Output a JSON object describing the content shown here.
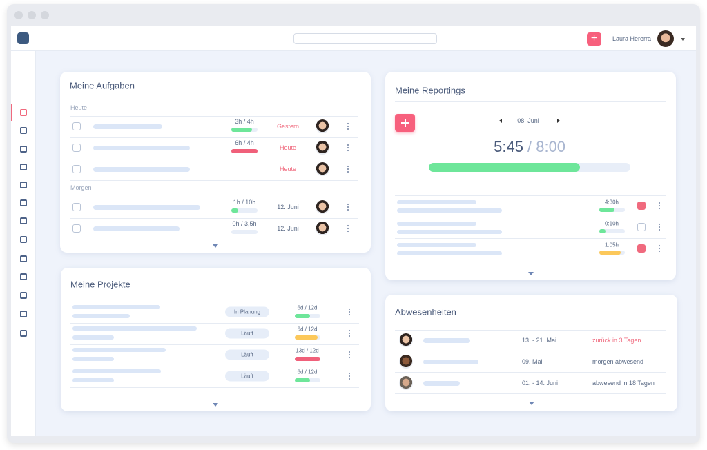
{
  "header": {
    "user": "Laura Hererra"
  },
  "tasks": {
    "title": "Meine Aufgaben",
    "groups": [
      {
        "label": "Heute",
        "rows": [
          {
            "time": "3h / 4h",
            "due": "Gestern"
          },
          {
            "time": "6h / 4h",
            "due": "Heute"
          },
          {
            "due": "Heute"
          }
        ]
      },
      {
        "label": "Morgen",
        "rows": [
          {
            "time": "1h / 10h",
            "due": "12. Juni"
          },
          {
            "time": "0h / 3,5h",
            "due": "12. Juni"
          }
        ]
      }
    ]
  },
  "projects": {
    "title": "Meine Projekte",
    "rows": [
      {
        "status": "In Planung",
        "time": "6d / 12d"
      },
      {
        "status": "Läuft",
        "time": "6d / 12d"
      },
      {
        "status": "Läuft",
        "time": "13d / 12d"
      },
      {
        "status": "Läuft",
        "time": "6d / 12d"
      }
    ]
  },
  "reportings": {
    "title": "Meine Reportings",
    "date": "08. Juni",
    "worked": "5:45",
    "target": "/ 8:00",
    "rows": [
      {
        "time": "4:30h"
      },
      {
        "time": "0:10h"
      },
      {
        "time": "1:05h"
      }
    ]
  },
  "absences": {
    "title": "Abwesenheiten",
    "rows": [
      {
        "date": "13. - 21. Mai",
        "status": "zurück in 3 Tagen"
      },
      {
        "date": "09. Mai",
        "status": "morgen abwesend"
      },
      {
        "date": "01. - 14. Juni",
        "status": "abwesend in 18 Tagen"
      }
    ]
  }
}
